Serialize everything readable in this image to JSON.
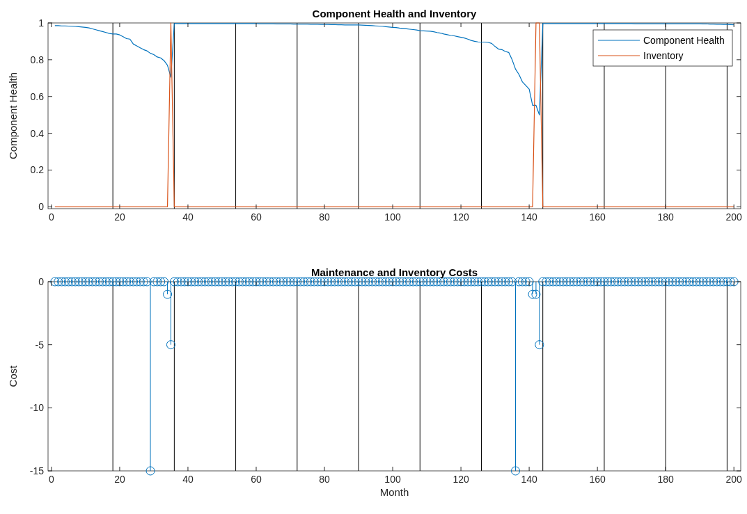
{
  "chart_data": [
    {
      "type": "line",
      "title": "Component Health and Inventory",
      "ylabel": "Component Health",
      "xlim": [
        -1,
        202
      ],
      "xticks": [
        0,
        20,
        40,
        60,
        80,
        100,
        120,
        140,
        160,
        180,
        200
      ],
      "ylim": [
        -0.01,
        1
      ],
      "yticks": [
        0,
        0.2,
        0.4,
        0.6,
        0.8,
        1
      ],
      "legend": "top right",
      "x": [
        1,
        2,
        3,
        4,
        5,
        6,
        7,
        8,
        9,
        10,
        11,
        12,
        13,
        14,
        15,
        16,
        17,
        18,
        19,
        20,
        21,
        22,
        23,
        24,
        25,
        26,
        27,
        28,
        29,
        30,
        31,
        32,
        33,
        34,
        35,
        36,
        37,
        38,
        39,
        40,
        41,
        42,
        43,
        44,
        45,
        46,
        47,
        48,
        49,
        50,
        51,
        52,
        53,
        54,
        55,
        56,
        57,
        58,
        59,
        60,
        61,
        62,
        63,
        64,
        65,
        66,
        67,
        68,
        69,
        70,
        71,
        72,
        73,
        74,
        75,
        76,
        77,
        78,
        79,
        80,
        81,
        82,
        83,
        84,
        85,
        86,
        87,
        88,
        89,
        90,
        91,
        92,
        93,
        94,
        95,
        96,
        97,
        98,
        99,
        100,
        101,
        102,
        103,
        104,
        105,
        106,
        107,
        108,
        109,
        110,
        111,
        112,
        113,
        114,
        115,
        116,
        117,
        118,
        119,
        120,
        121,
        122,
        123,
        124,
        125,
        126,
        127,
        128,
        129,
        130,
        131,
        132,
        133,
        134,
        135,
        136,
        137,
        138,
        139,
        140,
        141,
        142,
        143,
        144,
        145,
        146,
        147,
        148,
        149,
        150,
        151,
        152,
        153,
        154,
        155,
        156,
        157,
        158,
        159,
        160,
        161,
        162,
        163,
        164,
        165,
        166,
        167,
        168,
        169,
        170,
        171,
        172,
        173,
        174,
        175,
        176,
        177,
        178,
        179,
        180,
        181,
        182,
        183,
        184,
        185,
        186,
        187,
        188,
        189,
        190,
        191,
        192,
        193,
        194,
        195,
        196,
        197,
        198,
        199,
        200
      ],
      "series": [
        {
          "name": "Component Health",
          "color": "#0072bd",
          "values": [
            0.985,
            0.985,
            0.984,
            0.984,
            0.983,
            0.982,
            0.981,
            0.98,
            0.978,
            0.976,
            0.973,
            0.968,
            0.963,
            0.958,
            0.953,
            0.948,
            0.943,
            0.94,
            0.94,
            0.935,
            0.925,
            0.915,
            0.912,
            0.885,
            0.875,
            0.865,
            0.855,
            0.848,
            0.835,
            0.828,
            0.815,
            0.81,
            0.795,
            0.77,
            0.705,
            0.997,
            0.997,
            0.997,
            0.997,
            0.997,
            0.997,
            0.997,
            0.997,
            0.997,
            0.997,
            0.997,
            0.997,
            0.997,
            0.997,
            0.997,
            0.997,
            0.997,
            0.997,
            0.997,
            0.997,
            0.997,
            0.997,
            0.997,
            0.997,
            0.997,
            0.996,
            0.996,
            0.996,
            0.996,
            0.996,
            0.995,
            0.995,
            0.995,
            0.995,
            0.995,
            0.994,
            0.994,
            0.994,
            0.994,
            0.994,
            0.993,
            0.993,
            0.993,
            0.992,
            0.992,
            0.992,
            0.991,
            0.991,
            0.99,
            0.99,
            0.989,
            0.989,
            0.989,
            0.989,
            0.989,
            0.988,
            0.987,
            0.986,
            0.985,
            0.984,
            0.983,
            0.982,
            0.98,
            0.978,
            0.976,
            0.975,
            0.972,
            0.97,
            0.968,
            0.966,
            0.964,
            0.962,
            0.958,
            0.957,
            0.956,
            0.955,
            0.952,
            0.948,
            0.945,
            0.94,
            0.936,
            0.932,
            0.93,
            0.926,
            0.922,
            0.918,
            0.912,
            0.905,
            0.9,
            0.897,
            0.896,
            0.896,
            0.894,
            0.889,
            0.872,
            0.858,
            0.855,
            0.845,
            0.84,
            0.8,
            0.749,
            0.72,
            0.68,
            0.66,
            0.64,
            0.552,
            0.552,
            0.5,
            0.997,
            0.997,
            0.997,
            0.997,
            0.997,
            0.997,
            0.997,
            0.997,
            0.997,
            0.997,
            0.997,
            0.997,
            0.997,
            0.997,
            0.997,
            0.997,
            0.997,
            0.997,
            0.997,
            0.997,
            0.997,
            0.997,
            0.997,
            0.997,
            0.997,
            0.997,
            0.997,
            0.996,
            0.996,
            0.996,
            0.996,
            0.996,
            0.996,
            0.996,
            0.996,
            0.996,
            0.996,
            0.996,
            0.996,
            0.996,
            0.996,
            0.996,
            0.996,
            0.996,
            0.996,
            0.996,
            0.996,
            0.995,
            0.995,
            0.994,
            0.994,
            0.993,
            0.993,
            0.992,
            0.992,
            0.991,
            0.99
          ]
        },
        {
          "name": "Inventory",
          "color": "#d95319",
          "values": [
            0,
            0,
            0,
            0,
            0,
            0,
            0,
            0,
            0,
            0,
            0,
            0,
            0,
            0,
            0,
            0,
            0,
            0,
            0,
            0,
            0,
            0,
            0,
            0,
            0,
            0,
            0,
            0,
            0,
            0,
            0,
            0,
            0,
            0,
            1,
            0,
            0,
            0,
            0,
            0,
            0,
            0,
            0,
            0,
            0,
            0,
            0,
            0,
            0,
            0,
            0,
            0,
            0,
            0,
            0,
            0,
            0,
            0,
            0,
            0,
            0,
            0,
            0,
            0,
            0,
            0,
            0,
            0,
            0,
            0,
            0,
            0,
            0,
            0,
            0,
            0,
            0,
            0,
            0,
            0,
            0,
            0,
            0,
            0,
            0,
            0,
            0,
            0,
            0,
            0,
            0,
            0,
            0,
            0,
            0,
            0,
            0,
            0,
            0,
            0,
            0,
            0,
            0,
            0,
            0,
            0,
            0,
            0,
            0,
            0,
            0,
            0,
            0,
            0,
            0,
            0,
            0,
            0,
            0,
            0,
            0,
            0,
            0,
            0,
            0,
            0,
            0,
            0,
            0,
            0,
            0,
            0,
            0,
            0,
            0,
            0,
            0,
            0,
            0,
            0,
            0,
            1,
            1,
            0,
            0,
            0,
            0,
            0,
            0,
            0,
            0,
            0,
            0,
            0,
            0,
            0,
            0,
            0,
            0,
            0,
            0,
            0,
            0,
            0,
            0,
            0,
            0,
            0,
            0,
            0,
            0,
            0,
            0,
            0,
            0,
            0,
            0,
            0,
            0,
            0,
            0,
            0,
            0,
            0,
            0,
            0,
            0,
            0,
            0,
            0,
            0,
            0,
            0,
            0,
            0,
            0,
            0,
            0,
            0,
            0
          ]
        }
      ],
      "ref_lines": [
        {
          "axis": "x",
          "value": 18,
          "color": "#000000"
        },
        {
          "axis": "x",
          "value": 36,
          "color": "#000000"
        },
        {
          "axis": "x",
          "value": 54,
          "color": "#000000"
        },
        {
          "axis": "x",
          "value": 72,
          "color": "#000000"
        },
        {
          "axis": "x",
          "value": 90,
          "color": "#000000"
        },
        {
          "axis": "x",
          "value": 108,
          "color": "#000000"
        },
        {
          "axis": "x",
          "value": 126,
          "color": "#000000"
        },
        {
          "axis": "x",
          "value": 144,
          "color": "#000000"
        },
        {
          "axis": "x",
          "value": 162,
          "color": "#000000"
        },
        {
          "axis": "x",
          "value": 180,
          "color": "#000000"
        },
        {
          "axis": "x",
          "value": 198,
          "color": "#000000"
        }
      ]
    },
    {
      "type": "lollipop",
      "title": "Maintenance and Inventory Costs",
      "xlabel": "Month",
      "ylabel": "Cost",
      "xlim": [
        -1,
        202
      ],
      "xticks": [
        0,
        20,
        40,
        60,
        80,
        100,
        120,
        140,
        160,
        180,
        200
      ],
      "ylim": [
        -15,
        0
      ],
      "yticks": [
        -15,
        -10,
        -5,
        0
      ],
      "marker": "circle",
      "x": [
        1,
        2,
        3,
        4,
        5,
        6,
        7,
        8,
        9,
        10,
        11,
        12,
        13,
        14,
        15,
        16,
        17,
        18,
        19,
        20,
        21,
        22,
        23,
        24,
        25,
        26,
        27,
        28,
        29,
        30,
        31,
        32,
        33,
        34,
        35,
        36,
        37,
        38,
        39,
        40,
        41,
        42,
        43,
        44,
        45,
        46,
        47,
        48,
        49,
        50,
        51,
        52,
        53,
        54,
        55,
        56,
        57,
        58,
        59,
        60,
        61,
        62,
        63,
        64,
        65,
        66,
        67,
        68,
        69,
        70,
        71,
        72,
        73,
        74,
        75,
        76,
        77,
        78,
        79,
        80,
        81,
        82,
        83,
        84,
        85,
        86,
        87,
        88,
        89,
        90,
        91,
        92,
        93,
        94,
        95,
        96,
        97,
        98,
        99,
        100,
        101,
        102,
        103,
        104,
        105,
        106,
        107,
        108,
        109,
        110,
        111,
        112,
        113,
        114,
        115,
        116,
        117,
        118,
        119,
        120,
        121,
        122,
        123,
        124,
        125,
        126,
        127,
        128,
        129,
        130,
        131,
        132,
        133,
        134,
        135,
        136,
        137,
        138,
        139,
        140,
        141,
        142,
        143,
        144,
        145,
        146,
        147,
        148,
        149,
        150,
        151,
        152,
        153,
        154,
        155,
        156,
        157,
        158,
        159,
        160,
        161,
        162,
        163,
        164,
        165,
        166,
        167,
        168,
        169,
        170,
        171,
        172,
        173,
        174,
        175,
        176,
        177,
        178,
        179,
        180,
        181,
        182,
        183,
        184,
        185,
        186,
        187,
        188,
        189,
        190,
        191,
        192,
        193,
        194,
        195,
        196,
        197,
        198,
        199,
        200
      ],
      "series": [
        {
          "color": "#0072bd",
          "values": [
            0,
            0,
            0,
            0,
            0,
            0,
            0,
            0,
            0,
            0,
            0,
            0,
            0,
            0,
            0,
            0,
            0,
            0,
            0,
            0,
            0,
            0,
            0,
            0,
            0,
            0,
            0,
            0,
            -15,
            0,
            0,
            0,
            0,
            -1,
            -5,
            0,
            0,
            0,
            0,
            0,
            0,
            0,
            0,
            0,
            0,
            0,
            0,
            0,
            0,
            0,
            0,
            0,
            0,
            0,
            0,
            0,
            0,
            0,
            0,
            0,
            0,
            0,
            0,
            0,
            0,
            0,
            0,
            0,
            0,
            0,
            0,
            0,
            0,
            0,
            0,
            0,
            0,
            0,
            0,
            0,
            0,
            0,
            0,
            0,
            0,
            0,
            0,
            0,
            0,
            0,
            0,
            0,
            0,
            0,
            0,
            0,
            0,
            0,
            0,
            0,
            0,
            0,
            0,
            0,
            0,
            0,
            0,
            0,
            0,
            0,
            0,
            0,
            0,
            0,
            0,
            0,
            0,
            0,
            0,
            0,
            0,
            0,
            0,
            0,
            0,
            0,
            0,
            0,
            0,
            0,
            0,
            0,
            0,
            0,
            0,
            -15,
            0,
            0,
            0,
            0,
            -1,
            -1,
            -5,
            0,
            0,
            0,
            0,
            0,
            0,
            0,
            0,
            0,
            0,
            0,
            0,
            0,
            0,
            0,
            0,
            0,
            0,
            0,
            0,
            0,
            0,
            0,
            0,
            0,
            0,
            0,
            0,
            0,
            0,
            0,
            0,
            0,
            0,
            0,
            0,
            0,
            0,
            0,
            0,
            0,
            0,
            0,
            0,
            0,
            0,
            0,
            0,
            0,
            0,
            0,
            0,
            0,
            0,
            0,
            0,
            0
          ]
        }
      ],
      "ref_lines": [
        {
          "axis": "x",
          "value": 18,
          "color": "#000000"
        },
        {
          "axis": "x",
          "value": 36,
          "color": "#000000"
        },
        {
          "axis": "x",
          "value": 54,
          "color": "#000000"
        },
        {
          "axis": "x",
          "value": 72,
          "color": "#000000"
        },
        {
          "axis": "x",
          "value": 90,
          "color": "#000000"
        },
        {
          "axis": "x",
          "value": 108,
          "color": "#000000"
        },
        {
          "axis": "x",
          "value": 126,
          "color": "#000000"
        },
        {
          "axis": "x",
          "value": 144,
          "color": "#000000"
        },
        {
          "axis": "x",
          "value": 162,
          "color": "#000000"
        },
        {
          "axis": "x",
          "value": 180,
          "color": "#000000"
        },
        {
          "axis": "x",
          "value": 198,
          "color": "#000000"
        }
      ]
    }
  ]
}
